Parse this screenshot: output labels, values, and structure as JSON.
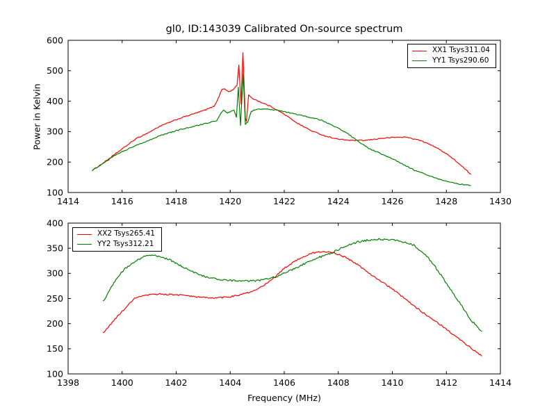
{
  "figure": {
    "background": "#ffffff",
    "axis_color": "#000000",
    "text_color": "#000000"
  },
  "chart_data": [
    {
      "type": "line",
      "panel": "top",
      "title": "gl0, ID:143039 Calibrated On-source spectrum",
      "xlabel": "",
      "ylabel": "Power in Kelvin",
      "xlim": [
        1414,
        1430
      ],
      "ylim": [
        100,
        600
      ],
      "xticks": [
        1414,
        1416,
        1418,
        1420,
        1422,
        1424,
        1426,
        1428,
        1430
      ],
      "yticks": [
        100,
        200,
        300,
        400,
        500,
        600
      ],
      "grid": false,
      "legend": {
        "position": "upper-right",
        "entries": [
          {
            "label": "XX1 Tsys311.04",
            "color": "#ff0000"
          },
          {
            "label": "YY1 Tsys290.60",
            "color": "#008000"
          }
        ]
      },
      "series": [
        {
          "name": "XX1",
          "color": "#ff0000",
          "noise_k": 1.6,
          "points": [
            [
              1414.9,
              173
            ],
            [
              1415.3,
              197
            ],
            [
              1415.8,
              230
            ],
            [
              1416.5,
              276
            ],
            [
              1417.0,
              298
            ],
            [
              1417.4,
              318
            ],
            [
              1418.2,
              346
            ],
            [
              1418.7,
              360
            ],
            [
              1419.1,
              372
            ],
            [
              1419.4,
              383
            ],
            [
              1419.55,
              408
            ],
            [
              1419.7,
              441
            ],
            [
              1419.8,
              439
            ],
            [
              1419.95,
              431
            ],
            [
              1420.1,
              437
            ],
            [
              1420.25,
              452
            ],
            [
              1420.32,
              519
            ],
            [
              1420.4,
              390
            ],
            [
              1420.47,
              561
            ],
            [
              1420.56,
              345
            ],
            [
              1420.6,
              334
            ],
            [
              1420.68,
              420
            ],
            [
              1420.78,
              411
            ],
            [
              1421.0,
              402
            ],
            [
              1421.25,
              392
            ],
            [
              1421.5,
              383
            ],
            [
              1422.0,
              357
            ],
            [
              1422.5,
              327
            ],
            [
              1423.0,
              303
            ],
            [
              1423.5,
              286
            ],
            [
              1424.0,
              275
            ],
            [
              1424.5,
              271
            ],
            [
              1425.0,
              271
            ],
            [
              1425.5,
              277
            ],
            [
              1426.0,
              281
            ],
            [
              1426.5,
              282
            ],
            [
              1427.0,
              272
            ],
            [
              1427.5,
              254
            ],
            [
              1428.0,
              228
            ],
            [
              1428.4,
              200
            ],
            [
              1428.9,
              160
            ]
          ]
        },
        {
          "name": "YY1",
          "color": "#008000",
          "noise_k": 1.6,
          "points": [
            [
              1414.9,
              173
            ],
            [
              1415.3,
              196
            ],
            [
              1415.8,
              226
            ],
            [
              1416.5,
              254
            ],
            [
              1417.0,
              272
            ],
            [
              1417.4,
              287
            ],
            [
              1418.2,
              308
            ],
            [
              1418.7,
              318
            ],
            [
              1419.1,
              327
            ],
            [
              1419.5,
              336
            ],
            [
              1419.62,
              356
            ],
            [
              1419.75,
              370
            ],
            [
              1419.9,
              361
            ],
            [
              1420.05,
              368
            ],
            [
              1420.14,
              371
            ],
            [
              1420.23,
              348
            ],
            [
              1420.3,
              447
            ],
            [
              1420.38,
              321
            ],
            [
              1420.48,
              489
            ],
            [
              1420.56,
              325
            ],
            [
              1420.65,
              330
            ],
            [
              1420.78,
              367
            ],
            [
              1421.0,
              373
            ],
            [
              1421.3,
              374
            ],
            [
              1421.7,
              371
            ],
            [
              1422.0,
              366
            ],
            [
              1422.5,
              356
            ],
            [
              1423.0,
              346
            ],
            [
              1423.4,
              337
            ],
            [
              1423.8,
              320
            ],
            [
              1424.25,
              299
            ],
            [
              1424.65,
              274
            ],
            [
              1425.1,
              246
            ],
            [
              1426.0,
              211
            ],
            [
              1426.8,
              174
            ],
            [
              1427.7,
              144
            ],
            [
              1428.4,
              128
            ],
            [
              1428.9,
              123
            ]
          ]
        }
      ]
    },
    {
      "type": "line",
      "panel": "bottom",
      "title": "",
      "xlabel": "Frequency (MHz)",
      "ylabel": "",
      "xlim": [
        1398,
        1414
      ],
      "ylim": [
        100,
        400
      ],
      "xticks": [
        1398,
        1400,
        1402,
        1404,
        1406,
        1408,
        1410,
        1412,
        1414
      ],
      "yticks": [
        100,
        150,
        200,
        250,
        300,
        350,
        400
      ],
      "grid": false,
      "legend": {
        "position": "upper-left",
        "entries": [
          {
            "label": "XX2 Tsys265.41",
            "color": "#ff0000"
          },
          {
            "label": "YY2 Tsys312.21",
            "color": "#008000"
          }
        ]
      },
      "series": [
        {
          "name": "XX2",
          "color": "#ff0000",
          "noise_k": 1.5,
          "points": [
            [
              1399.3,
              181
            ],
            [
              1399.7,
              207
            ],
            [
              1400.05,
              227
            ],
            [
              1400.5,
              252
            ],
            [
              1401.0,
              257
            ],
            [
              1401.4,
              259
            ],
            [
              1401.8,
              258
            ],
            [
              1402.2,
              257
            ],
            [
              1402.6,
              254
            ],
            [
              1403.0,
              252
            ],
            [
              1403.5,
              251
            ],
            [
              1403.95,
              253
            ],
            [
              1404.4,
              258
            ],
            [
              1404.8,
              263
            ],
            [
              1405.1,
              271
            ],
            [
              1405.6,
              290
            ],
            [
              1406.0,
              310
            ],
            [
              1406.5,
              328
            ],
            [
              1407.0,
              340
            ],
            [
              1407.4,
              343
            ],
            [
              1407.8,
              342
            ],
            [
              1408.3,
              331
            ],
            [
              1408.7,
              318
            ],
            [
              1409.1,
              302
            ],
            [
              1409.5,
              287
            ],
            [
              1410.0,
              269
            ],
            [
              1410.4,
              252
            ],
            [
              1410.8,
              235
            ],
            [
              1411.3,
              216
            ],
            [
              1411.7,
              201
            ],
            [
              1412.1,
              185
            ],
            [
              1412.5,
              168
            ],
            [
              1412.9,
              152
            ],
            [
              1413.3,
              136
            ]
          ]
        },
        {
          "name": "YY2",
          "color": "#008000",
          "noise_k": 1.8,
          "points": [
            [
              1399.3,
              244
            ],
            [
              1399.65,
              277
            ],
            [
              1400.05,
              307
            ],
            [
              1400.5,
              325
            ],
            [
              1400.9,
              336
            ],
            [
              1401.35,
              334
            ],
            [
              1401.8,
              326
            ],
            [
              1402.2,
              314
            ],
            [
              1402.65,
              302
            ],
            [
              1403.05,
              294
            ],
            [
              1403.5,
              288
            ],
            [
              1403.9,
              286
            ],
            [
              1404.4,
              285
            ],
            [
              1404.8,
              285
            ],
            [
              1405.1,
              286
            ],
            [
              1405.8,
              295
            ],
            [
              1406.5,
              313
            ],
            [
              1407.2,
              330
            ],
            [
              1407.8,
              342
            ],
            [
              1408.3,
              355
            ],
            [
              1408.7,
              362
            ],
            [
              1409.1,
              366
            ],
            [
              1409.5,
              368
            ],
            [
              1409.9,
              367
            ],
            [
              1410.4,
              363
            ],
            [
              1410.8,
              356
            ],
            [
              1411.35,
              330
            ],
            [
              1411.85,
              293
            ],
            [
              1412.4,
              249
            ],
            [
              1412.9,
              208
            ],
            [
              1413.3,
              185
            ]
          ]
        }
      ]
    }
  ]
}
